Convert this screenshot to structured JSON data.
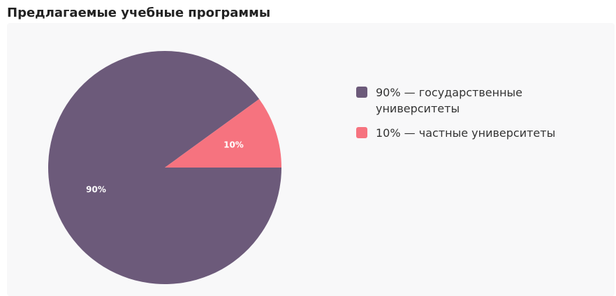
{
  "page": {
    "title": "Предлагаемые учебные программы"
  },
  "chart_data": {
    "type": "pie",
    "title": "",
    "slices": [
      {
        "label": "90% — государственные университеты",
        "value": 90,
        "data_label": "90%",
        "color": "#6c5a7a"
      },
      {
        "label": "10% — частные университеты",
        "value": 10,
        "data_label": "10%",
        "color": "#f6737f"
      }
    ],
    "legend": {
      "placement": "right"
    },
    "direction": "counterclockwise-from-3-oclock"
  }
}
